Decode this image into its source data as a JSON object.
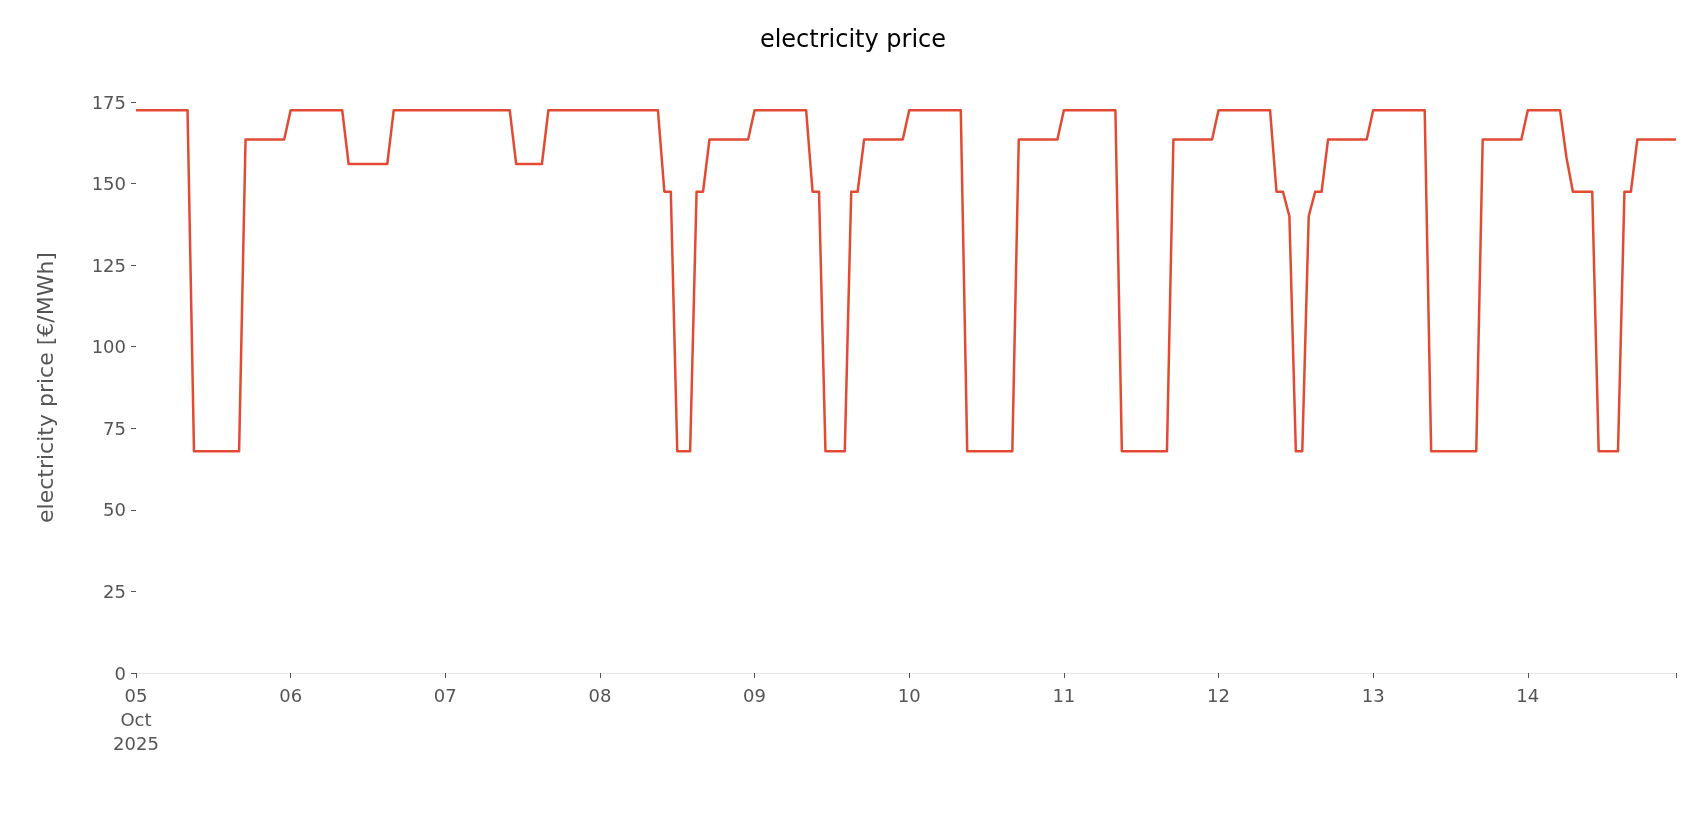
{
  "chart_data": {
    "type": "line",
    "title": "electricity price",
    "ylabel": "electricity price [€/MWh]",
    "x": [
      "2025-10-05T00:00",
      "2025-10-05T08:00",
      "2025-10-05T09:00",
      "2025-10-05T16:00",
      "2025-10-05T17:00",
      "2025-10-05T23:00",
      "2025-10-06T00:00",
      "2025-10-06T08:00",
      "2025-10-06T09:00",
      "2025-10-06T15:00",
      "2025-10-06T16:00",
      "2025-10-07T10:00",
      "2025-10-07T11:00",
      "2025-10-07T15:00",
      "2025-10-07T16:00",
      "2025-10-08T09:00",
      "2025-10-08T10:00",
      "2025-10-08T11:00",
      "2025-10-08T12:00",
      "2025-10-08T14:00",
      "2025-10-08T15:00",
      "2025-10-08T16:00",
      "2025-10-08T17:00",
      "2025-10-08T23:00",
      "2025-10-09T00:00",
      "2025-10-09T08:00",
      "2025-10-09T09:00",
      "2025-10-09T10:00",
      "2025-10-09T11:00",
      "2025-10-09T14:00",
      "2025-10-09T15:00",
      "2025-10-09T16:00",
      "2025-10-09T17:00",
      "2025-10-09T23:00",
      "2025-10-10T00:00",
      "2025-10-10T08:00",
      "2025-10-10T09:00",
      "2025-10-10T16:00",
      "2025-10-10T17:00",
      "2025-10-10T23:00",
      "2025-10-11T00:00",
      "2025-10-11T08:00",
      "2025-10-11T09:00",
      "2025-10-11T16:00",
      "2025-10-11T17:00",
      "2025-10-11T23:00",
      "2025-10-12T00:00",
      "2025-10-12T08:00",
      "2025-10-12T09:00",
      "2025-10-12T10:00",
      "2025-10-12T11:00",
      "2025-10-12T12:00",
      "2025-10-12T13:00",
      "2025-10-12T14:00",
      "2025-10-12T15:00",
      "2025-10-12T16:00",
      "2025-10-12T17:00",
      "2025-10-12T23:00",
      "2025-10-13T00:00",
      "2025-10-13T08:00",
      "2025-10-13T09:00",
      "2025-10-13T16:00",
      "2025-10-13T17:00",
      "2025-10-13T23:00",
      "2025-10-14T00:00",
      "2025-10-14T05:00",
      "2025-10-14T06:00",
      "2025-10-14T07:00",
      "2025-10-14T10:00",
      "2025-10-14T11:00",
      "2025-10-14T14:00",
      "2025-10-14T15:00",
      "2025-10-14T16:00",
      "2025-10-14T17:00",
      "2025-10-14T23:00"
    ],
    "series": [
      {
        "color": "#e24a33",
        "values": [
          172.5,
          172.5,
          68,
          68,
          163.5,
          163.5,
          172.5,
          172.5,
          156,
          156,
          172.5,
          172.5,
          156,
          156,
          172.5,
          172.5,
          147.5,
          147.5,
          68,
          68,
          147.5,
          147.5,
          163.5,
          163.5,
          172.5,
          172.5,
          147.5,
          147.5,
          68,
          68,
          147.5,
          147.5,
          163.5,
          163.5,
          172.5,
          172.5,
          68,
          68,
          163.5,
          163.5,
          172.5,
          172.5,
          68,
          68,
          163.5,
          163.5,
          172.5,
          172.5,
          147.5,
          147.5,
          140,
          68,
          68,
          140,
          147.5,
          147.5,
          163.5,
          163.5,
          172.5,
          172.5,
          68,
          68,
          163.5,
          163.5,
          172.5,
          172.5,
          158,
          147.5,
          147.5,
          68,
          68,
          147.5,
          147.5,
          163.5,
          163.5
        ]
      }
    ],
    "xticks": [
      {
        "value": "2025-10-05",
        "label": "05\nOct\n2025"
      },
      {
        "value": "2025-10-06",
        "label": "06"
      },
      {
        "value": "2025-10-07",
        "label": "07"
      },
      {
        "value": "2025-10-08",
        "label": "08"
      },
      {
        "value": "2025-10-09",
        "label": "09"
      },
      {
        "value": "2025-10-10",
        "label": "10"
      },
      {
        "value": "2025-10-11",
        "label": "11"
      },
      {
        "value": "2025-10-12",
        "label": "12"
      },
      {
        "value": "2025-10-13",
        "label": "13"
      },
      {
        "value": "2025-10-14",
        "label": "14"
      },
      {
        "value": "2025-10-14T23:00",
        "label": null
      }
    ],
    "xlim": [
      "2025-10-05T00:00",
      "2025-10-14T23:00"
    ],
    "ylim": [
      0,
      175
    ],
    "yticks": [
      0,
      25,
      50,
      75,
      100,
      125,
      150,
      175
    ],
    "grid": false
  }
}
